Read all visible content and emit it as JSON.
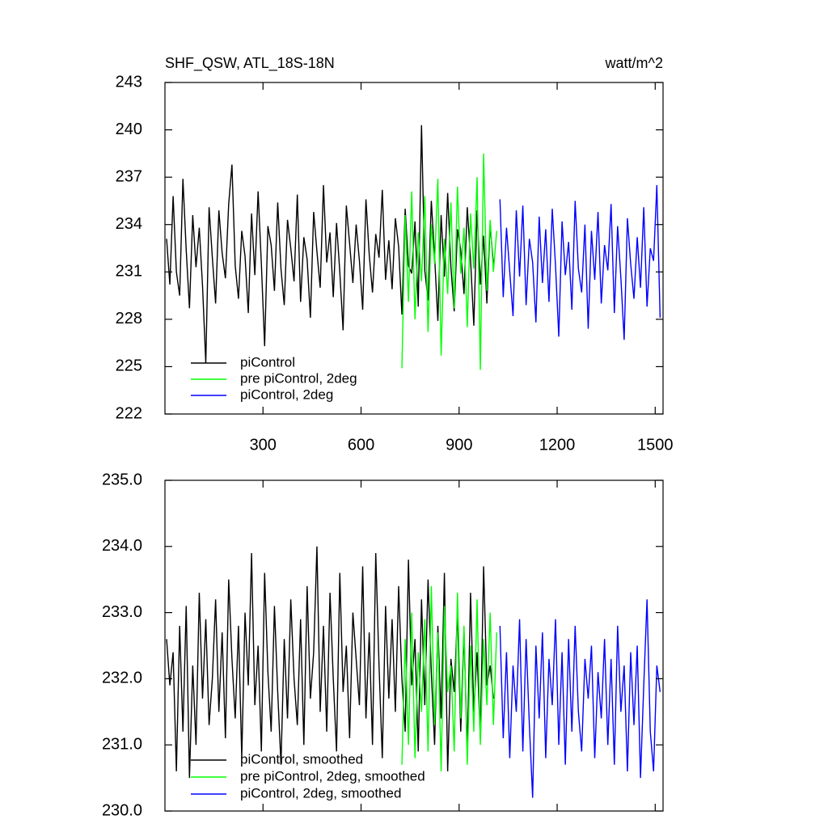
{
  "chart_data": [
    {
      "type": "line",
      "title": "SHF_QSW, ATL_18S-18N",
      "units": "watt/m^2",
      "xlim": [
        0,
        1524
      ],
      "ylim": [
        222,
        243
      ],
      "xticks": [
        300,
        600,
        900,
        1200,
        1500
      ],
      "yticks": [
        222,
        225,
        228,
        231,
        234,
        237,
        240,
        243
      ],
      "legend": "lower left",
      "series": [
        {
          "name": "piControl",
          "color": "#000000",
          "x": [
            5,
            15,
            25,
            35,
            45,
            55,
            65,
            75,
            85,
            95,
            105,
            115,
            125,
            135,
            145,
            155,
            165,
            175,
            185,
            195,
            205,
            215,
            225,
            235,
            245,
            255,
            265,
            275,
            285,
            295,
            305,
            315,
            325,
            335,
            345,
            355,
            365,
            375,
            385,
            395,
            405,
            415,
            425,
            435,
            445,
            455,
            465,
            475,
            485,
            495,
            505,
            515,
            525,
            535,
            545,
            555,
            565,
            575,
            585,
            595,
            605,
            615,
            625,
            635,
            645,
            655,
            665,
            675,
            685,
            695,
            705,
            715,
            725,
            735,
            745,
            755,
            765,
            775,
            785,
            795,
            805,
            815,
            825,
            835,
            845,
            855,
            865,
            875,
            885,
            895,
            905,
            915,
            925,
            935,
            945,
            955,
            965,
            975,
            985,
            995,
            1005
          ],
          "values": [
            233.1,
            230.2,
            235.8,
            231.0,
            229.5,
            236.9,
            232.4,
            228.7,
            234.6,
            231.3,
            233.8,
            230.1,
            225.2,
            235.1,
            231.9,
            229.0,
            234.9,
            232.2,
            230.6,
            235.3,
            237.8,
            231.4,
            229.3,
            233.6,
            232.0,
            228.4,
            234.7,
            230.8,
            236.1,
            231.5,
            226.3,
            233.9,
            232.7,
            229.8,
            235.4,
            231.2,
            228.9,
            234.3,
            232.5,
            230.4,
            235.9,
            229.1,
            233.2,
            231.8,
            228.1,
            234.8,
            232.3,
            230.0,
            236.5,
            231.6,
            233.5,
            229.4,
            234.1,
            231.0,
            227.3,
            235.2,
            232.8,
            230.3,
            234.0,
            231.7,
            228.6,
            235.6,
            232.1,
            229.7,
            233.4,
            231.9,
            236.2,
            230.5,
            233.0,
            229.9,
            234.4,
            232.6,
            228.3,
            235.0,
            231.4,
            230.9,
            234.2,
            228.8,
            240.3,
            231.1,
            229.2,
            235.5,
            232.0,
            227.9,
            234.6,
            230.7,
            236.0,
            231.3,
            228.5,
            233.7,
            232.4,
            229.6,
            235.1,
            231.8,
            227.6,
            234.9,
            230.2,
            233.3,
            229.0,
            234.0,
            231.5
          ]
        },
        {
          "name": "pre piControl, 2deg",
          "color": "#00ff00",
          "x": [
            725,
            735,
            745,
            755,
            765,
            775,
            785,
            795,
            805,
            815,
            825,
            835,
            845,
            855,
            865,
            875,
            885,
            895,
            905,
            915,
            925,
            935,
            945,
            955,
            965,
            975,
            985,
            995,
            1005,
            1015
          ],
          "values": [
            224.9,
            234.6,
            229.1,
            236.1,
            228.0,
            233.5,
            230.4,
            235.8,
            227.2,
            234.0,
            231.5,
            236.9,
            225.7,
            233.1,
            229.6,
            235.4,
            228.7,
            236.4,
            230.9,
            233.8,
            227.5,
            234.7,
            231.2,
            237.0,
            224.8,
            238.5,
            229.8,
            234.3,
            231.0,
            233.6
          ]
        },
        {
          "name": "piControl, 2deg",
          "color": "#0000ff",
          "x": [
            1025,
            1035,
            1045,
            1055,
            1065,
            1075,
            1085,
            1095,
            1105,
            1115,
            1125,
            1135,
            1145,
            1155,
            1165,
            1175,
            1185,
            1195,
            1205,
            1215,
            1225,
            1235,
            1245,
            1255,
            1265,
            1275,
            1285,
            1295,
            1305,
            1315,
            1325,
            1335,
            1345,
            1355,
            1365,
            1375,
            1385,
            1395,
            1405,
            1415,
            1425,
            1435,
            1445,
            1455,
            1465,
            1475,
            1485,
            1495,
            1505,
            1515
          ],
          "values": [
            235.6,
            229.4,
            233.8,
            231.0,
            228.2,
            234.9,
            230.7,
            235.2,
            228.9,
            233.1,
            231.6,
            227.8,
            234.5,
            230.3,
            233.7,
            229.1,
            235.0,
            231.4,
            226.9,
            234.2,
            230.8,
            232.9,
            228.6,
            235.5,
            231.2,
            229.7,
            234.0,
            227.4,
            233.6,
            230.5,
            234.8,
            229.0,
            232.7,
            231.1,
            235.3,
            228.4,
            233.9,
            230.6,
            226.7,
            234.4,
            231.5,
            229.3,
            233.2,
            230.0,
            235.1,
            228.8,
            232.5,
            231.7,
            236.5,
            228.1
          ]
        }
      ]
    },
    {
      "type": "line",
      "xlim": [
        0,
        1524
      ],
      "ylim": [
        230,
        235
      ],
      "xticks": [
        300,
        600,
        900,
        1200,
        1500
      ],
      "yticks": [
        {
          "value": 230,
          "label": "230.0"
        },
        {
          "value": 231,
          "label": "231.0"
        },
        {
          "value": 232,
          "label": "232.0"
        },
        {
          "value": 233,
          "label": "233.0"
        },
        {
          "value": 234,
          "label": "234.0"
        },
        {
          "value": 235,
          "label": "235.0"
        }
      ],
      "legend": "lower left",
      "series": [
        {
          "name": "piControl, smoothed",
          "color": "#000000",
          "x": [
            5,
            15,
            25,
            35,
            45,
            55,
            65,
            75,
            85,
            95,
            105,
            115,
            125,
            135,
            145,
            155,
            165,
            175,
            185,
            195,
            205,
            215,
            225,
            235,
            245,
            255,
            265,
            275,
            285,
            295,
            305,
            315,
            325,
            335,
            345,
            355,
            365,
            375,
            385,
            395,
            405,
            415,
            425,
            435,
            445,
            455,
            465,
            475,
            485,
            495,
            505,
            515,
            525,
            535,
            545,
            555,
            565,
            575,
            585,
            595,
            605,
            615,
            625,
            635,
            645,
            655,
            665,
            675,
            685,
            695,
            705,
            715,
            725,
            735,
            745,
            755,
            765,
            775,
            785,
            795,
            805,
            815,
            825,
            835,
            845,
            855,
            865,
            875,
            885,
            895,
            905,
            915,
            925,
            935,
            945,
            955,
            965,
            975,
            985,
            995,
            1005
          ],
          "values": [
            232.6,
            231.9,
            232.4,
            230.6,
            232.8,
            231.2,
            233.1,
            230.5,
            232.2,
            231.0,
            233.3,
            231.7,
            232.9,
            231.3,
            232.0,
            233.2,
            231.5,
            232.7,
            231.1,
            233.5,
            232.3,
            231.4,
            232.8,
            230.8,
            233.0,
            231.9,
            233.9,
            231.6,
            232.5,
            230.9,
            233.6,
            232.1,
            231.2,
            233.1,
            231.8,
            230.7,
            232.6,
            231.4,
            233.2,
            232.0,
            231.3,
            232.9,
            231.0,
            233.4,
            231.7,
            232.4,
            234.0,
            231.5,
            232.8,
            231.2,
            233.3,
            232.0,
            230.9,
            233.6,
            231.8,
            232.5,
            231.1,
            233.0,
            232.3,
            231.6,
            233.7,
            231.4,
            232.7,
            231.0,
            233.9,
            232.2,
            230.8,
            233.1,
            231.7,
            232.9,
            231.5,
            233.4,
            232.0,
            231.2,
            233.8,
            231.9,
            232.6,
            230.9,
            233.2,
            231.6,
            233.5,
            232.1,
            231.0,
            232.8,
            231.4,
            233.6,
            230.6,
            232.3,
            231.8,
            233.0,
            231.2,
            232.7,
            230.9,
            233.3,
            231.5,
            232.4,
            231.1,
            233.7,
            231.9,
            232.2,
            231.7
          ]
        },
        {
          "name": "pre piControl, 2deg, smoothed",
          "color": "#00ff00",
          "x": [
            725,
            735,
            745,
            755,
            765,
            775,
            785,
            795,
            805,
            815,
            825,
            835,
            845,
            855,
            865,
            875,
            885,
            895,
            905,
            915,
            925,
            935,
            945,
            955,
            965,
            975,
            985,
            995,
            1005,
            1015
          ],
          "values": [
            230.7,
            232.6,
            231.0,
            233.0,
            230.8,
            232.4,
            231.5,
            232.9,
            230.9,
            233.4,
            231.3,
            232.7,
            230.6,
            233.1,
            231.8,
            232.2,
            230.9,
            233.3,
            231.4,
            232.8,
            230.7,
            232.5,
            231.2,
            233.2,
            231.0,
            232.6,
            231.6,
            233.0,
            231.3,
            232.7
          ]
        },
        {
          "name": "piControl, 2deg, smoothed",
          "color": "#0000ff",
          "x": [
            1025,
            1035,
            1045,
            1055,
            1065,
            1075,
            1085,
            1095,
            1105,
            1115,
            1125,
            1135,
            1145,
            1155,
            1165,
            1175,
            1185,
            1195,
            1205,
            1215,
            1225,
            1235,
            1245,
            1255,
            1265,
            1275,
            1285,
            1295,
            1305,
            1315,
            1325,
            1335,
            1345,
            1355,
            1365,
            1375,
            1385,
            1395,
            1405,
            1415,
            1425,
            1435,
            1445,
            1455,
            1465,
            1475,
            1485,
            1495,
            1505,
            1515
          ],
          "values": [
            232.8,
            231.1,
            232.4,
            230.8,
            232.2,
            231.5,
            232.9,
            230.9,
            232.6,
            231.3,
            230.2,
            232.5,
            231.4,
            232.7,
            230.8,
            232.3,
            231.6,
            232.9,
            231.0,
            232.4,
            230.7,
            232.6,
            231.2,
            232.8,
            231.5,
            230.9,
            232.3,
            231.7,
            232.5,
            230.8,
            232.1,
            231.4,
            232.6,
            231.0,
            232.3,
            230.7,
            232.8,
            231.5,
            232.2,
            230.6,
            232.4,
            231.3,
            232.5,
            230.5,
            231.9,
            233.2,
            231.2,
            230.6,
            232.2,
            231.8
          ]
        }
      ]
    }
  ]
}
